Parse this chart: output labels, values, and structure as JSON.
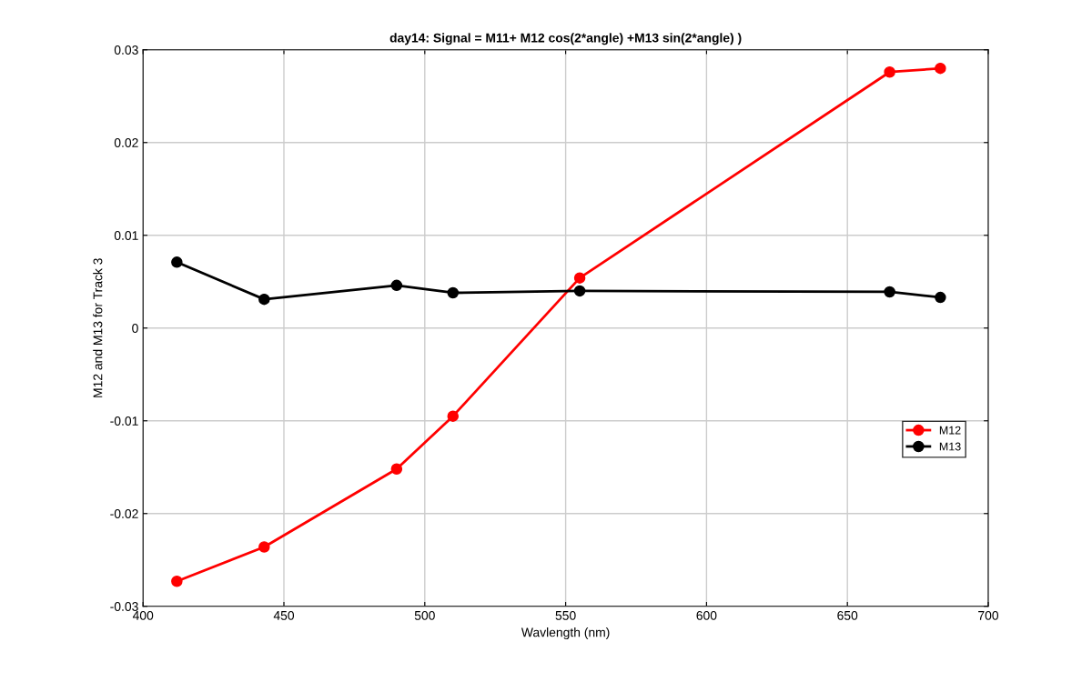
{
  "chart_data": {
    "type": "line",
    "title": "day14: Signal = M11+ M12 cos(2*angle) +M13 sin(2*angle) )",
    "xlabel": "Wavlength (nm)",
    "ylabel": "M12 and M13 for Track 3",
    "x": [
      412,
      443,
      490,
      510,
      555,
      665,
      683
    ],
    "series": [
      {
        "name": "M12",
        "color": "#ff0000",
        "values": [
          -0.0273,
          -0.0236,
          -0.0152,
          -0.0095,
          0.0054,
          0.0276,
          0.028
        ]
      },
      {
        "name": "M13",
        "color": "#000000",
        "values": [
          0.0071,
          0.0031,
          0.0046,
          0.0038,
          0.004,
          0.0039,
          0.0033
        ]
      }
    ],
    "xlim": [
      400,
      700
    ],
    "xticks": [
      400,
      450,
      500,
      550,
      600,
      650,
      700
    ],
    "ylim": [
      -0.03,
      0.03
    ],
    "yticks": [
      -0.03,
      -0.02,
      -0.01,
      0,
      0.01,
      0.02,
      0.03
    ],
    "grid": true,
    "legend": "right",
    "marker": "circle",
    "line_style": "solid"
  }
}
